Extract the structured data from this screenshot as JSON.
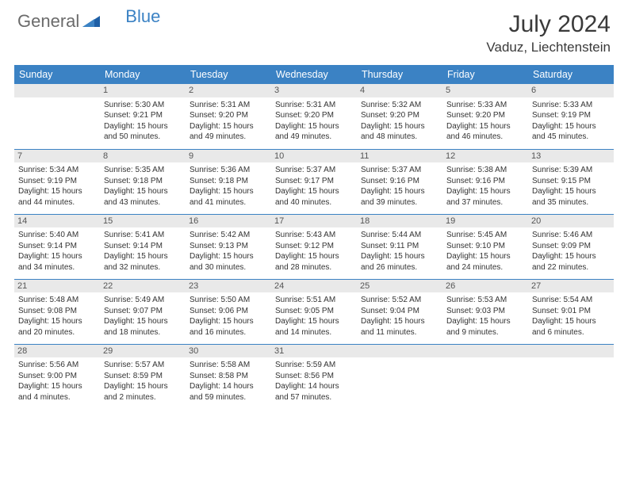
{
  "brand": {
    "general": "General",
    "blue": "Blue"
  },
  "title": "July 2024",
  "location": "Vaduz, Liechtenstein",
  "headerColor": "#3b82c4",
  "weekdays": [
    "Sunday",
    "Monday",
    "Tuesday",
    "Wednesday",
    "Thursday",
    "Friday",
    "Saturday"
  ],
  "firstDayColumn": 1,
  "daysInMonth": 31,
  "days": {
    "1": {
      "sunrise": "5:30 AM",
      "sunset": "9:21 PM",
      "daylight": "15 hours and 50 minutes."
    },
    "2": {
      "sunrise": "5:31 AM",
      "sunset": "9:20 PM",
      "daylight": "15 hours and 49 minutes."
    },
    "3": {
      "sunrise": "5:31 AM",
      "sunset": "9:20 PM",
      "daylight": "15 hours and 49 minutes."
    },
    "4": {
      "sunrise": "5:32 AM",
      "sunset": "9:20 PM",
      "daylight": "15 hours and 48 minutes."
    },
    "5": {
      "sunrise": "5:33 AM",
      "sunset": "9:20 PM",
      "daylight": "15 hours and 46 minutes."
    },
    "6": {
      "sunrise": "5:33 AM",
      "sunset": "9:19 PM",
      "daylight": "15 hours and 45 minutes."
    },
    "7": {
      "sunrise": "5:34 AM",
      "sunset": "9:19 PM",
      "daylight": "15 hours and 44 minutes."
    },
    "8": {
      "sunrise": "5:35 AM",
      "sunset": "9:18 PM",
      "daylight": "15 hours and 43 minutes."
    },
    "9": {
      "sunrise": "5:36 AM",
      "sunset": "9:18 PM",
      "daylight": "15 hours and 41 minutes."
    },
    "10": {
      "sunrise": "5:37 AM",
      "sunset": "9:17 PM",
      "daylight": "15 hours and 40 minutes."
    },
    "11": {
      "sunrise": "5:37 AM",
      "sunset": "9:16 PM",
      "daylight": "15 hours and 39 minutes."
    },
    "12": {
      "sunrise": "5:38 AM",
      "sunset": "9:16 PM",
      "daylight": "15 hours and 37 minutes."
    },
    "13": {
      "sunrise": "5:39 AM",
      "sunset": "9:15 PM",
      "daylight": "15 hours and 35 minutes."
    },
    "14": {
      "sunrise": "5:40 AM",
      "sunset": "9:14 PM",
      "daylight": "15 hours and 34 minutes."
    },
    "15": {
      "sunrise": "5:41 AM",
      "sunset": "9:14 PM",
      "daylight": "15 hours and 32 minutes."
    },
    "16": {
      "sunrise": "5:42 AM",
      "sunset": "9:13 PM",
      "daylight": "15 hours and 30 minutes."
    },
    "17": {
      "sunrise": "5:43 AM",
      "sunset": "9:12 PM",
      "daylight": "15 hours and 28 minutes."
    },
    "18": {
      "sunrise": "5:44 AM",
      "sunset": "9:11 PM",
      "daylight": "15 hours and 26 minutes."
    },
    "19": {
      "sunrise": "5:45 AM",
      "sunset": "9:10 PM",
      "daylight": "15 hours and 24 minutes."
    },
    "20": {
      "sunrise": "5:46 AM",
      "sunset": "9:09 PM",
      "daylight": "15 hours and 22 minutes."
    },
    "21": {
      "sunrise": "5:48 AM",
      "sunset": "9:08 PM",
      "daylight": "15 hours and 20 minutes."
    },
    "22": {
      "sunrise": "5:49 AM",
      "sunset": "9:07 PM",
      "daylight": "15 hours and 18 minutes."
    },
    "23": {
      "sunrise": "5:50 AM",
      "sunset": "9:06 PM",
      "daylight": "15 hours and 16 minutes."
    },
    "24": {
      "sunrise": "5:51 AM",
      "sunset": "9:05 PM",
      "daylight": "15 hours and 14 minutes."
    },
    "25": {
      "sunrise": "5:52 AM",
      "sunset": "9:04 PM",
      "daylight": "15 hours and 11 minutes."
    },
    "26": {
      "sunrise": "5:53 AM",
      "sunset": "9:03 PM",
      "daylight": "15 hours and 9 minutes."
    },
    "27": {
      "sunrise": "5:54 AM",
      "sunset": "9:01 PM",
      "daylight": "15 hours and 6 minutes."
    },
    "28": {
      "sunrise": "5:56 AM",
      "sunset": "9:00 PM",
      "daylight": "15 hours and 4 minutes."
    },
    "29": {
      "sunrise": "5:57 AM",
      "sunset": "8:59 PM",
      "daylight": "15 hours and 2 minutes."
    },
    "30": {
      "sunrise": "5:58 AM",
      "sunset": "8:58 PM",
      "daylight": "14 hours and 59 minutes."
    },
    "31": {
      "sunrise": "5:59 AM",
      "sunset": "8:56 PM",
      "daylight": "14 hours and 57 minutes."
    }
  },
  "labels": {
    "sunrise": "Sunrise: ",
    "sunset": "Sunset: ",
    "daylight": "Daylight: "
  }
}
